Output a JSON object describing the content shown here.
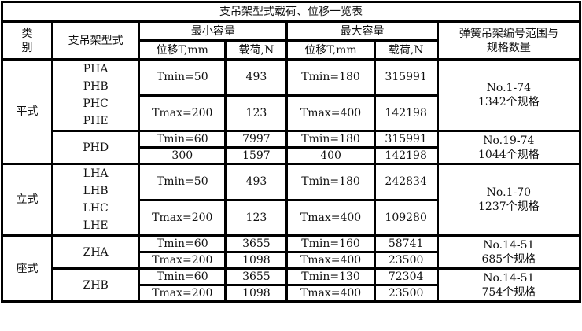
{
  "title": "支吊架型式载荷、位移一览表",
  "headers": {
    "category": "类别",
    "category_top": "类",
    "category_bottom": "别",
    "type": "支吊架型式",
    "min_capacity": "最小容量",
    "max_capacity": "最大容量",
    "displacement": "位移T,mm",
    "load": "载荷,N",
    "range_line1": "弹簧吊架编号范围与",
    "range_line2": "规格数量"
  },
  "groups": [
    {
      "category": "平式",
      "subgroups": [
        {
          "types": [
            "PHA",
            "PHB",
            "PHC",
            "PHE"
          ],
          "rows": [
            {
              "min_disp": "Tmin=50",
              "min_load": "493",
              "max_disp": "Tmin=180",
              "max_load": "315991"
            },
            {
              "min_disp": "Tmax=200",
              "min_load": "123",
              "max_disp": "Tmax=400",
              "max_load": "142198"
            }
          ],
          "range": "No.1-74",
          "count": "1342个规格"
        },
        {
          "types": [
            "PHD"
          ],
          "rows": [
            {
              "min_disp": "Tmin=60",
              "min_load": "7997",
              "max_disp": "Tmin=180",
              "max_load": "315991"
            },
            {
              "min_disp": "300",
              "min_load": "1597",
              "max_disp": "400",
              "max_load": "142198"
            }
          ],
          "range": "No.19-74",
          "count": "1044个规格"
        }
      ]
    },
    {
      "category": "立式",
      "subgroups": [
        {
          "types": [
            "LHA",
            "LHB",
            "LHC",
            "LHE"
          ],
          "rows": [
            {
              "min_disp": "Tmin=50",
              "min_load": "493",
              "max_disp": "Tmin=180",
              "max_load": "242834"
            },
            {
              "min_disp": "Tmax=200",
              "min_load": "123",
              "max_disp": "Tmax=400",
              "max_load": "109280"
            }
          ],
          "range": "No.1-70",
          "count": "1237个规格"
        }
      ]
    },
    {
      "category": "座式",
      "subgroups": [
        {
          "types": [
            "ZHA"
          ],
          "rows": [
            {
              "min_disp": "Tmin=60",
              "min_load": "3655",
              "max_disp": "Tmin=160",
              "max_load": "58741"
            },
            {
              "min_disp": "Tmax=200",
              "min_load": "1098",
              "max_disp": "Tmax=400",
              "max_load": "23500"
            }
          ],
          "range": "No.14-51",
          "count": "685个规格"
        },
        {
          "types": [
            "ZHB"
          ],
          "rows": [
            {
              "min_disp": "Tmin=60",
              "min_load": "3655",
              "max_disp": "Tmin=130",
              "max_load": "72304"
            },
            {
              "min_disp": "Tmax=200",
              "min_load": "1098",
              "max_disp": "Tmax=400",
              "max_load": "23500"
            }
          ],
          "range": "No.14-51",
          "count": "754个规格"
        }
      ]
    }
  ]
}
